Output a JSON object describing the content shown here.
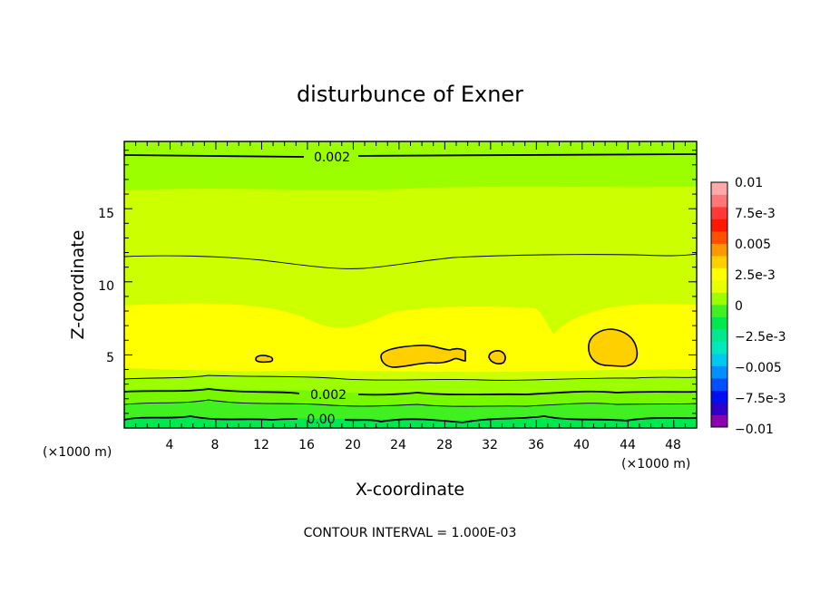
{
  "chart_data": {
    "type": "heatmap",
    "title": "disturbunce of Exner",
    "xlabel": "X-coordinate",
    "ylabel": "Z-coordinate",
    "x_unit": "(×1000 m)",
    "z_unit": "(×1000 m)",
    "xlim": [
      0,
      50
    ],
    "ylim": [
      0,
      19.6
    ],
    "x_ticks": [
      "4",
      "8",
      "12",
      "16",
      "20",
      "24",
      "28",
      "32",
      "36",
      "40",
      "44",
      "48"
    ],
    "y_ticks": [
      "5",
      "10",
      "15"
    ],
    "contour_interval_text": "CONTOUR INTERVAL = 1.000E-03",
    "contour_labels": [
      {
        "text": "0.002",
        "x": 18.5,
        "y": 18.9
      },
      {
        "text": "0.002",
        "x": 18.0,
        "y": 2.4
      },
      {
        "text": "0.00",
        "x": 17.5,
        "y": 0.7
      }
    ],
    "colorbar": {
      "range": [
        -0.01,
        0.01
      ],
      "labels": [
        "0.01",
        "7.5e-3",
        "0.005",
        "2.5e-3",
        "0",
        "−2.5e-3",
        "−0.005",
        "−7.5e-3",
        "−0.01"
      ],
      "colors": [
        "#8b00b0",
        "#3000c8",
        "#0010f0",
        "#0050ff",
        "#0090ff",
        "#00c8f0",
        "#00e8c0",
        "#00e890",
        "#00e850",
        "#40f020",
        "#9cff00",
        "#e8ff00",
        "#ffff00",
        "#ffd000",
        "#ff9800",
        "#ff5000",
        "#ff1800",
        "#ff3838",
        "#ff7878",
        "#ffaaaa"
      ]
    },
    "fill_colors": {
      "lt_0": "#00e850",
      "0_to_1e-3": "#40f020",
      "1e-3_to_2e-3": "#78f800",
      "2e-3_to_3e-3": "#9cff00",
      "3e-3_to_4e-3": "#ccff00",
      "4e-3_to_5e-3": "#ffff00",
      "5e-3_to_6e-3": "#ffd000"
    }
  }
}
